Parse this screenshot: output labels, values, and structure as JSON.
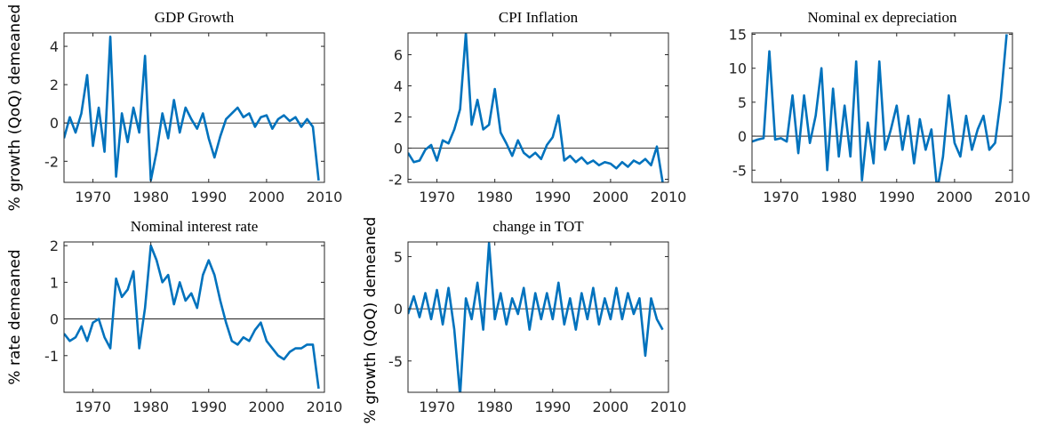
{
  "chart_data": [
    {
      "type": "line",
      "title": "GDP Growth",
      "ylabel": "% growth (QoQ) demeaned",
      "color": "#0072bd",
      "x": [
        1965,
        1966,
        1967,
        1968,
        1969,
        1970,
        1971,
        1972,
        1973,
        1974,
        1975,
        1976,
        1977,
        1978,
        1979,
        1980,
        1981,
        1982,
        1983,
        1984,
        1985,
        1986,
        1987,
        1988,
        1989,
        1990,
        1991,
        1992,
        1993,
        1994,
        1995,
        1996,
        1997,
        1998,
        1999,
        2000,
        2001,
        2002,
        2003,
        2004,
        2005,
        2006,
        2007,
        2008,
        2009
      ],
      "values": [
        -0.8,
        0.3,
        -0.5,
        0.5,
        2.5,
        -1.2,
        0.8,
        -1.5,
        4.5,
        -2.8,
        0.5,
        -1.0,
        0.8,
        -0.5,
        3.5,
        -3.0,
        -1.5,
        0.5,
        -0.8,
        1.2,
        -0.5,
        0.8,
        0.2,
        -0.3,
        0.5,
        -0.8,
        -1.8,
        -0.7,
        0.2,
        0.5,
        0.8,
        0.3,
        0.5,
        -0.2,
        0.3,
        0.4,
        -0.3,
        0.2,
        0.4,
        0.1,
        0.3,
        -0.2,
        0.2,
        -0.2,
        -3.0
      ],
      "xlim": [
        1965,
        2010
      ],
      "xticks": [
        1970,
        1980,
        1990,
        2000,
        2010
      ],
      "ylim": [
        -3.1,
        4.7
      ],
      "yticks": [
        -2,
        0,
        2,
        4
      ]
    },
    {
      "type": "line",
      "title": "CPI Inflation",
      "color": "#0072bd",
      "x": [
        1965,
        1966,
        1967,
        1968,
        1969,
        1970,
        1971,
        1972,
        1973,
        1974,
        1975,
        1976,
        1977,
        1978,
        1979,
        1980,
        1981,
        1982,
        1983,
        1984,
        1985,
        1986,
        1987,
        1988,
        1989,
        1990,
        1991,
        1992,
        1993,
        1994,
        1995,
        1996,
        1997,
        1998,
        1999,
        2000,
        2001,
        2002,
        2003,
        2004,
        2005,
        2006,
        2007,
        2008,
        2009
      ],
      "values": [
        -0.3,
        -0.9,
        -0.8,
        -0.1,
        0.2,
        -0.8,
        0.5,
        0.3,
        1.2,
        2.5,
        7.4,
        1.5,
        3.1,
        1.2,
        1.5,
        3.8,
        1.0,
        0.3,
        -0.5,
        0.5,
        -0.3,
        -0.6,
        -0.3,
        -0.7,
        0.2,
        0.7,
        2.1,
        -0.8,
        -0.5,
        -0.9,
        -0.6,
        -1.0,
        -0.8,
        -1.1,
        -0.9,
        -1.0,
        -1.3,
        -0.9,
        -1.2,
        -0.8,
        -1.0,
        -0.7,
        -1.1,
        0.1,
        -2.2
      ],
      "xlim": [
        1965,
        2010
      ],
      "xticks": [
        1970,
        1980,
        1990,
        2000,
        2010
      ],
      "ylim": [
        -2.2,
        7.4
      ],
      "yticks": [
        -2,
        0,
        2,
        4,
        6
      ]
    },
    {
      "type": "line",
      "title": "Nominal ex depreciation",
      "color": "#0072bd",
      "x": [
        1965,
        1966,
        1967,
        1968,
        1969,
        1970,
        1971,
        1972,
        1973,
        1974,
        1975,
        1976,
        1977,
        1978,
        1979,
        1980,
        1981,
        1982,
        1983,
        1984,
        1985,
        1986,
        1987,
        1988,
        1989,
        1990,
        1991,
        1992,
        1993,
        1994,
        1995,
        1996,
        1997,
        1998,
        1999,
        2000,
        2001,
        2002,
        2003,
        2004,
        2005,
        2006,
        2007,
        2008,
        2009
      ],
      "values": [
        -0.8,
        -0.5,
        -0.3,
        12.5,
        -0.5,
        -0.3,
        -0.8,
        6,
        -2.5,
        6,
        -1,
        3,
        10,
        -5,
        7,
        -3,
        4.5,
        -3,
        11,
        -6.5,
        2,
        -4,
        11,
        -2,
        1,
        4.5,
        -2,
        3,
        -4,
        2.5,
        -2,
        1,
        -8,
        -3,
        6,
        -1,
        -3,
        3,
        -2,
        1,
        3,
        -2,
        -1,
        5.5,
        15
      ],
      "xlim": [
        1965,
        2010
      ],
      "xticks": [
        1970,
        1980,
        1990,
        2000,
        2010
      ],
      "ylim": [
        -6.8,
        15.2
      ],
      "yticks": [
        -5,
        0,
        5,
        10,
        15
      ]
    },
    {
      "type": "line",
      "title": "Nominal interest rate",
      "ylabel": "% rate demeaned",
      "color": "#0072bd",
      "x": [
        1965,
        1966,
        1967,
        1968,
        1969,
        1970,
        1971,
        1972,
        1973,
        1974,
        1975,
        1976,
        1977,
        1978,
        1979,
        1980,
        1981,
        1982,
        1983,
        1984,
        1985,
        1986,
        1987,
        1988,
        1989,
        1990,
        1991,
        1992,
        1993,
        1994,
        1995,
        1996,
        1997,
        1998,
        1999,
        2000,
        2001,
        2002,
        2003,
        2004,
        2005,
        2006,
        2007,
        2008,
        2009
      ],
      "values": [
        -0.4,
        -0.6,
        -0.5,
        -0.2,
        -0.6,
        -0.1,
        0,
        -0.5,
        -0.8,
        1.1,
        0.6,
        0.8,
        1.3,
        -0.8,
        0.3,
        2.0,
        1.6,
        1.0,
        1.2,
        0.4,
        1.0,
        0.5,
        0.7,
        0.3,
        1.2,
        1.6,
        1.2,
        0.5,
        -0.1,
        -0.6,
        -0.7,
        -0.5,
        -0.6,
        -0.3,
        -0.1,
        -0.6,
        -0.8,
        -1.0,
        -1.1,
        -0.9,
        -0.8,
        -0.8,
        -0.7,
        -0.7,
        -1.9
      ],
      "xlim": [
        1965,
        2010
      ],
      "xticks": [
        1970,
        1980,
        1990,
        2000,
        2010
      ],
      "ylim": [
        -2.0,
        2.1
      ],
      "yticks": [
        -1,
        0,
        1,
        2
      ]
    },
    {
      "type": "line",
      "title": "change in TOT",
      "ylabel": "% growth (QoQ) demeaned",
      "color": "#0072bd",
      "x": [
        1965,
        1966,
        1967,
        1968,
        1969,
        1970,
        1971,
        1972,
        1973,
        1974,
        1975,
        1976,
        1977,
        1978,
        1979,
        1980,
        1981,
        1982,
        1983,
        1984,
        1985,
        1986,
        1987,
        1988,
        1989,
        1990,
        1991,
        1992,
        1993,
        1994,
        1995,
        1996,
        1997,
        1998,
        1999,
        2000,
        2001,
        2002,
        2003,
        2004,
        2005,
        2006,
        2007,
        2008,
        2009
      ],
      "values": [
        -0.5,
        1.2,
        -0.8,
        1.5,
        -1,
        1.8,
        -1.5,
        2,
        -2,
        -8.3,
        1,
        -1,
        2.5,
        -2,
        6.3,
        -1,
        1.5,
        -1.5,
        1,
        -0.5,
        2,
        -2,
        1.5,
        -1,
        1.5,
        -1,
        2.5,
        -1.5,
        1,
        -2,
        1.5,
        -1,
        2,
        -1.5,
        1,
        -1,
        2,
        -1,
        1.5,
        -0.5,
        1,
        -4.5,
        1,
        -1,
        -2
      ],
      "xlim": [
        1965,
        2010
      ],
      "xticks": [
        1970,
        1980,
        1990,
        2000,
        2010
      ],
      "ylim": [
        -8,
        6.4
      ],
      "yticks": [
        -5,
        0,
        5
      ]
    }
  ]
}
